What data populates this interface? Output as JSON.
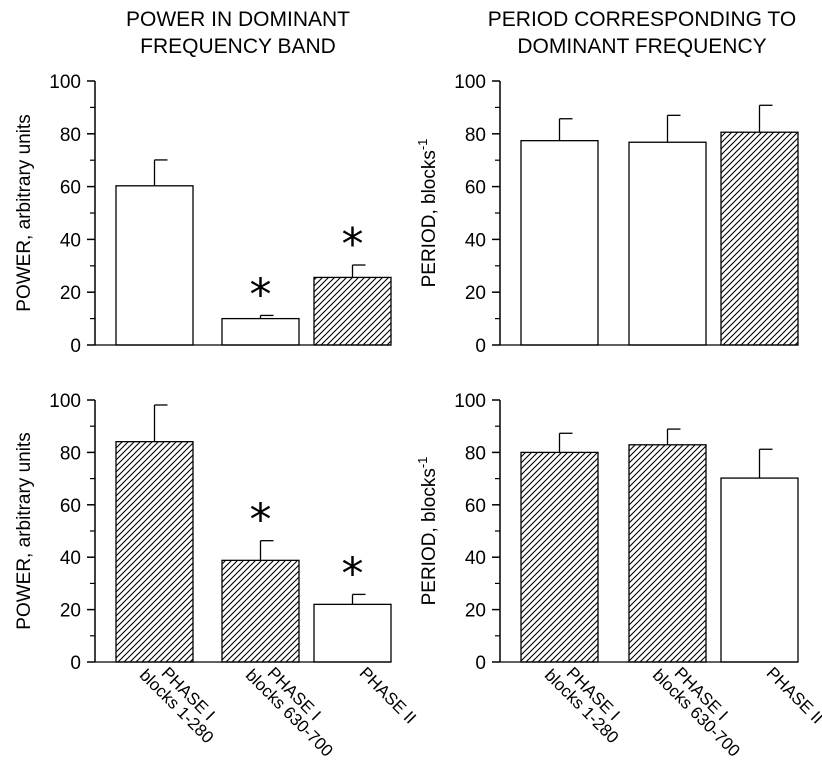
{
  "titles": {
    "left": [
      "POWER IN DOMINANT",
      "FREQUENCY BAND"
    ],
    "right": [
      "PERIOD CORRESPONDING TO",
      "DOMINANT FREQUENCY"
    ]
  },
  "categories": [
    [
      "PHASE I",
      "blocks 1-280"
    ],
    [
      "PHASE I",
      "blocks 630-700"
    ],
    [
      "PHASE II"
    ]
  ],
  "chart_data": [
    {
      "type": "bar",
      "panel": "top-left",
      "ylabel": "POWER, arbitrary units",
      "ylim": [
        0,
        100
      ],
      "yticks": [
        0,
        20,
        40,
        60,
        80,
        100
      ],
      "bars": [
        {
          "value": 60.3,
          "error": 9.8,
          "hatched": false,
          "significant": false
        },
        {
          "value": 10.0,
          "error": 1.2,
          "hatched": false,
          "significant": true
        },
        {
          "value": 25.6,
          "error": 4.7,
          "hatched": true,
          "significant": true
        }
      ]
    },
    {
      "type": "bar",
      "panel": "top-right",
      "ylabel": "PERIOD, blocks",
      "ylabel_sup": "-1",
      "ylim": [
        0,
        100
      ],
      "yticks": [
        0,
        20,
        40,
        60,
        80,
        100
      ],
      "bars": [
        {
          "value": 77.4,
          "error": 8.3,
          "hatched": false,
          "significant": false
        },
        {
          "value": 76.8,
          "error": 10.2,
          "hatched": false,
          "significant": false
        },
        {
          "value": 80.6,
          "error": 10.2,
          "hatched": true,
          "significant": false
        }
      ]
    },
    {
      "type": "bar",
      "panel": "bottom-left",
      "ylabel": "POWER, arbitrary units",
      "ylim": [
        0,
        100
      ],
      "yticks": [
        0,
        20,
        40,
        60,
        80,
        100
      ],
      "bars": [
        {
          "value": 84.1,
          "error": 14.0,
          "hatched": true,
          "significant": false
        },
        {
          "value": 38.8,
          "error": 7.5,
          "hatched": true,
          "significant": true
        },
        {
          "value": 22.0,
          "error": 3.8,
          "hatched": false,
          "significant": true
        }
      ]
    },
    {
      "type": "bar",
      "panel": "bottom-right",
      "ylabel": "PERIOD, blocks",
      "ylabel_sup": "-1",
      "ylim": [
        0,
        100
      ],
      "yticks": [
        0,
        20,
        40,
        60,
        80,
        100
      ],
      "bars": [
        {
          "value": 80.0,
          "error": 7.3,
          "hatched": true,
          "significant": false
        },
        {
          "value": 82.9,
          "error": 6.0,
          "hatched": true,
          "significant": false
        },
        {
          "value": 70.2,
          "error": 11.0,
          "hatched": false,
          "significant": false
        }
      ]
    }
  ],
  "significance_symbol": "*",
  "colors": {
    "ink": "#000000",
    "fill": "#ffffff"
  }
}
